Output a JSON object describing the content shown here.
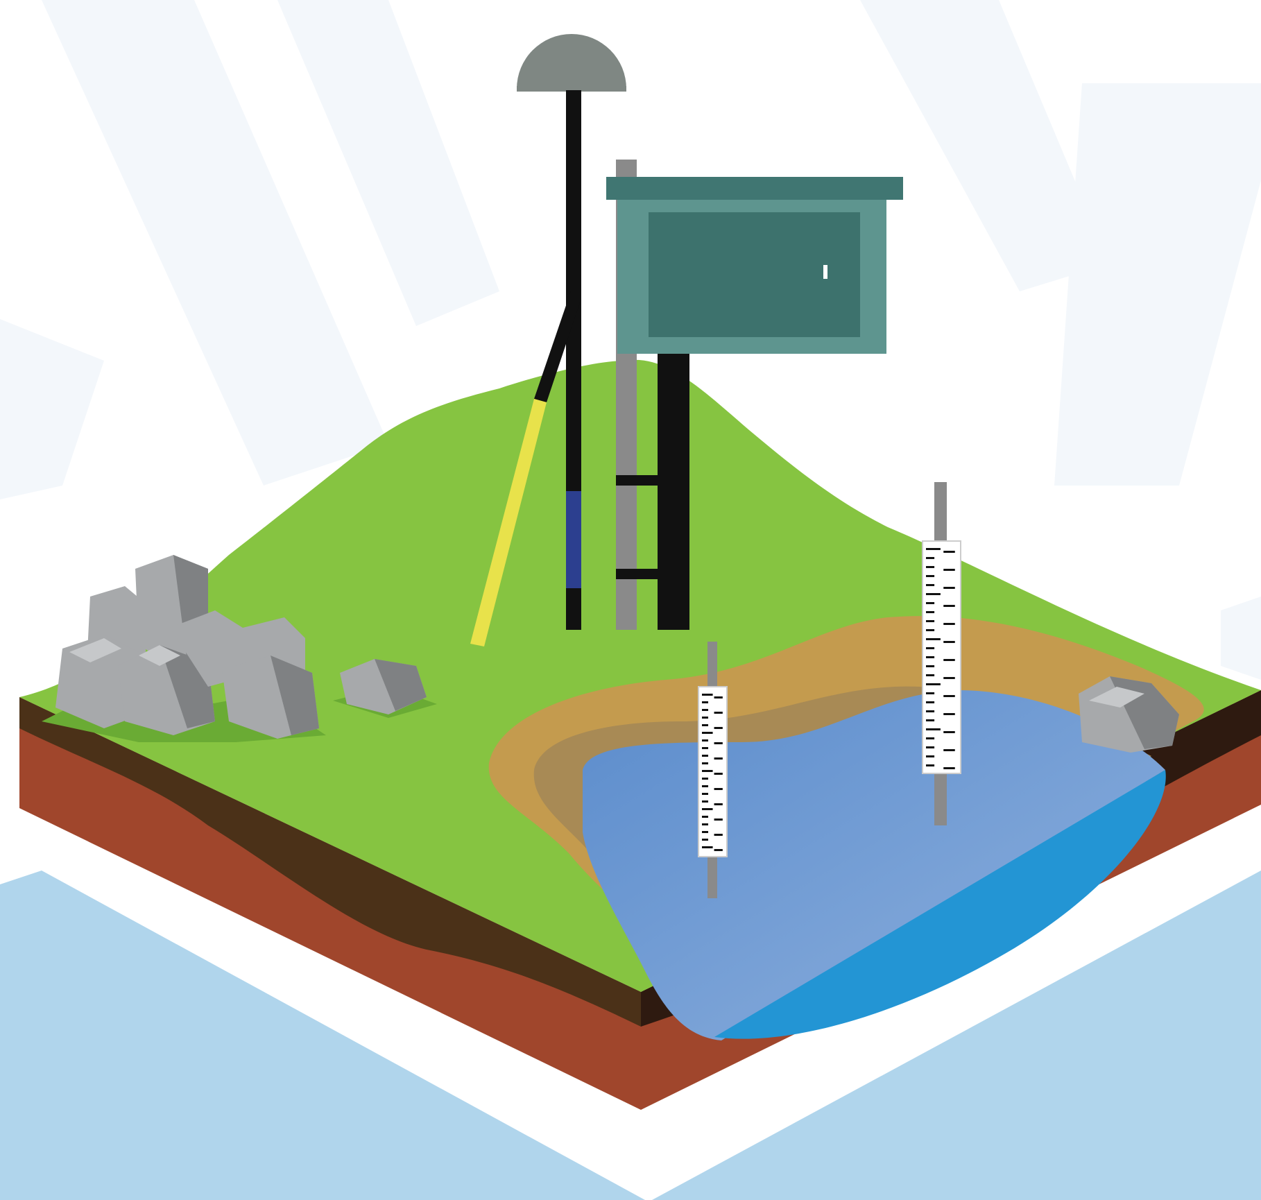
{
  "illustration": {
    "subject": "",
    "colors": {
      "background": "#ffffff",
      "sky_rays": "#f3f7fb",
      "base_water": "#b0d5ec",
      "grass": "#86c441",
      "grass_shadow": "#6aab34",
      "soil_dark": "#4b3118",
      "soil_red": "#a0462c",
      "soil_deep": "#2e1a10",
      "sand": "#c49b4e",
      "sand_dark": "#a88a55",
      "pond_light": "#8fb1de",
      "pond_dark": "#5b8ccc",
      "pond_edge": "#2395d4",
      "rock": "#a7a9ab",
      "rock_shadow": "#7f8183",
      "rock_light": "#c6c8ca",
      "antenna_dome": "#7f8783",
      "pole_black": "#111111",
      "pole_gray": "#8a8a8a",
      "box_frame": "#5e958f",
      "box_door": "#3d726d",
      "box_roof": "#407672",
      "leg_yellow": "#e8e24b",
      "pole_blue": "#2c3f8f",
      "gauge_face": "#ffffff",
      "gauge_mark": "#111111"
    },
    "icons": [
      "gnss-antenna-icon",
      "equipment-box-icon",
      "staff-gauge-icon",
      "rock-cluster-icon",
      "pond-icon"
    ]
  }
}
